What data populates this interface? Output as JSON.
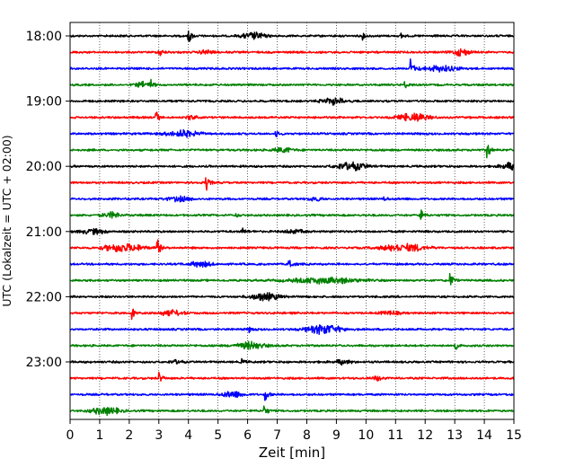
{
  "chart_data": {
    "type": "line",
    "subtype": "helicorder-seismogram",
    "xlabel": "Zeit  [min]",
    "ylabel": "UTC (Lokalzeit = UTC + 02:00)",
    "xlim": [
      0,
      15
    ],
    "x_ticks": [
      0,
      1,
      2,
      3,
      4,
      5,
      6,
      7,
      8,
      9,
      10,
      11,
      12,
      13,
      14,
      15
    ],
    "x_grid": "dotted",
    "y_tick_labels": [
      "18:00",
      "19:00",
      "20:00",
      "21:00",
      "22:00",
      "23:00"
    ],
    "trace_colors": [
      "#000000",
      "#ff0000",
      "#0000ff",
      "#008000"
    ],
    "traces": [
      {
        "start": "18:00",
        "events": [
          {
            "t": 4.0,
            "a": 1.0
          },
          {
            "t": 11.2,
            "a": 0.6
          },
          {
            "t": 9.9,
            "a": 0.4
          }
        ],
        "swells": [
          {
            "t": 6.2,
            "w": 0.8,
            "a": 0.35
          }
        ]
      },
      {
        "start": "18:15",
        "events": [
          {
            "t": 3.0,
            "a": 0.7
          }
        ],
        "swells": [
          {
            "t": 13.2,
            "w": 0.6,
            "a": 0.35
          },
          {
            "t": 4.6,
            "w": 0.4,
            "a": 0.25
          }
        ]
      },
      {
        "start": "18:30",
        "events": [
          {
            "t": 11.5,
            "a": 1.3
          }
        ],
        "swells": [
          {
            "t": 12.5,
            "w": 1.2,
            "a": 0.3
          }
        ]
      },
      {
        "start": "18:45",
        "events": [
          {
            "t": 2.7,
            "a": 0.6
          },
          {
            "t": 11.3,
            "a": 0.45
          }
        ],
        "swells": [
          {
            "t": 2.5,
            "w": 0.5,
            "a": 0.3
          }
        ]
      },
      {
        "start": "19:00",
        "events": [],
        "swells": [
          {
            "t": 8.9,
            "w": 0.8,
            "a": 0.35
          }
        ]
      },
      {
        "start": "19:15",
        "events": [
          {
            "t": 2.9,
            "a": 0.9
          }
        ],
        "swells": [
          {
            "t": 11.6,
            "w": 1.0,
            "a": 0.45
          },
          {
            "t": 4.1,
            "w": 0.3,
            "a": 0.3
          }
        ]
      },
      {
        "start": "19:30",
        "events": [
          {
            "t": 6.95,
            "a": 0.5
          }
        ],
        "swells": [
          {
            "t": 3.8,
            "w": 1.1,
            "a": 0.35
          }
        ]
      },
      {
        "start": "19:45",
        "events": [
          {
            "t": 14.1,
            "a": 1.0
          }
        ],
        "swells": [
          {
            "t": 7.2,
            "w": 0.6,
            "a": 0.3
          }
        ]
      },
      {
        "start": "20:00",
        "events": [],
        "swells": [
          {
            "t": 9.5,
            "w": 1.0,
            "a": 0.45
          },
          {
            "t": 14.8,
            "w": 0.5,
            "a": 0.45
          }
        ]
      },
      {
        "start": "20:15",
        "events": [
          {
            "t": 4.6,
            "a": 1.0
          }
        ],
        "swells": []
      },
      {
        "start": "20:30",
        "events": [
          {
            "t": 10.6,
            "a": 0.3
          }
        ],
        "swells": [
          {
            "t": 3.7,
            "w": 0.8,
            "a": 0.25
          },
          {
            "t": 8.3,
            "w": 0.5,
            "a": 0.2
          }
        ]
      },
      {
        "start": "20:45",
        "events": [
          {
            "t": 11.8,
            "a": 1.2
          },
          {
            "t": 5.6,
            "a": 0.3
          }
        ],
        "swells": [
          {
            "t": 1.4,
            "w": 0.6,
            "a": 0.3
          }
        ]
      },
      {
        "start": "21:00",
        "events": [
          {
            "t": 5.8,
            "a": 0.5
          }
        ],
        "swells": [
          {
            "t": 0.8,
            "w": 0.9,
            "a": 0.25
          },
          {
            "t": 7.6,
            "w": 0.6,
            "a": 0.2
          }
        ]
      },
      {
        "start": "21:15",
        "events": [
          {
            "t": 2.95,
            "a": 1.1
          }
        ],
        "swells": [
          {
            "t": 1.8,
            "w": 1.3,
            "a": 0.45
          },
          {
            "t": 11.3,
            "w": 1.5,
            "a": 0.4
          }
        ]
      },
      {
        "start": "21:30",
        "events": [
          {
            "t": 7.4,
            "a": 0.8
          }
        ],
        "swells": [
          {
            "t": 4.4,
            "w": 0.7,
            "a": 0.3
          }
        ]
      },
      {
        "start": "21:45",
        "events": [
          {
            "t": 12.85,
            "a": 1.0
          }
        ],
        "swells": [
          {
            "t": 8.6,
            "w": 2.2,
            "a": 0.35
          }
        ]
      },
      {
        "start": "22:00",
        "events": [],
        "swells": [
          {
            "t": 6.6,
            "w": 0.9,
            "a": 0.4
          }
        ]
      },
      {
        "start": "22:15",
        "events": [
          {
            "t": 2.1,
            "a": 0.7
          }
        ],
        "swells": [
          {
            "t": 3.4,
            "w": 0.8,
            "a": 0.3
          },
          {
            "t": 10.8,
            "w": 0.6,
            "a": 0.2
          }
        ]
      },
      {
        "start": "22:30",
        "events": [
          {
            "t": 6.05,
            "a": 0.3
          }
        ],
        "swells": [
          {
            "t": 8.6,
            "w": 1.1,
            "a": 0.55
          }
        ]
      },
      {
        "start": "22:45",
        "events": [
          {
            "t": 13.0,
            "a": 0.6
          }
        ],
        "swells": [
          {
            "t": 6.1,
            "w": 0.9,
            "a": 0.4
          }
        ]
      },
      {
        "start": "23:00",
        "events": [
          {
            "t": 5.8,
            "a": 0.35
          }
        ],
        "swells": [
          {
            "t": 9.2,
            "w": 0.6,
            "a": 0.25
          },
          {
            "t": 3.6,
            "w": 0.4,
            "a": 0.2
          }
        ]
      },
      {
        "start": "23:15",
        "events": [
          {
            "t": 3.0,
            "a": 0.9
          }
        ],
        "swells": [
          {
            "t": 10.4,
            "w": 0.4,
            "a": 0.2
          }
        ]
      },
      {
        "start": "23:30",
        "events": [
          {
            "t": 6.6,
            "a": 0.9
          }
        ],
        "swells": [
          {
            "t": 5.5,
            "w": 0.7,
            "a": 0.3
          }
        ]
      },
      {
        "start": "23:45",
        "events": [
          {
            "t": 6.55,
            "a": 0.8
          }
        ],
        "swells": [
          {
            "t": 1.2,
            "w": 0.9,
            "a": 0.45
          }
        ]
      }
    ]
  }
}
